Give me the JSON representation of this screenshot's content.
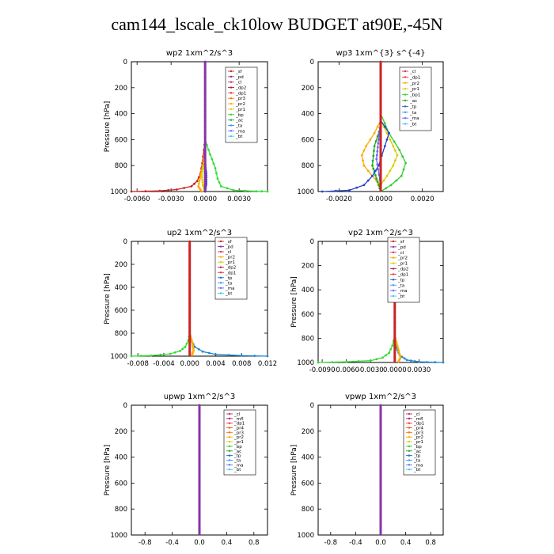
{
  "page": {
    "title": "cam144_lscale_ck10low  BUDGET at90E,-45N"
  },
  "chart_data": [
    {
      "type": "line",
      "title": "wp2   1xm^2/s^3",
      "ylabel": "Pressure [hPa]",
      "xlim": [
        -0.0065,
        0.0055
      ],
      "ylim": [
        1000,
        0
      ],
      "xticks": [
        "-0.0060",
        "-0.0030",
        "0.0000",
        "0.0030"
      ],
      "xtick_values": [
        -0.006,
        -0.003,
        0.0,
        0.003
      ],
      "yticks": [
        0,
        200,
        400,
        600,
        800,
        1000
      ],
      "legend": [
        "_sf",
        "_pd",
        "_cl",
        "_dp2",
        "_dp1",
        "_pr3",
        "_pr2",
        "_pr1",
        "_bp",
        "_ac",
        "_ta",
        "_ma",
        "_bt"
      ],
      "series": [
        {
          "name": "_dp1",
          "color": "#cc2222",
          "points": [
            [
              -0.0065,
              1000
            ],
            [
              -0.004,
              995
            ],
            [
              -0.0025,
              985
            ],
            [
              -0.0012,
              960
            ],
            [
              -0.0007,
              920
            ],
            [
              -0.0004,
              860
            ],
            [
              -0.00025,
              780
            ],
            [
              -0.0001,
              680
            ],
            [
              0.0,
              600
            ]
          ]
        },
        {
          "name": "_pr2",
          "color": "#ffaa00",
          "points": [
            [
              -0.0003,
              1000
            ],
            [
              -0.0006,
              960
            ],
            [
              -0.0004,
              880
            ],
            [
              -0.0002,
              800
            ],
            [
              0.0,
              700
            ]
          ]
        },
        {
          "name": "_pr1",
          "color": "#ddcc00",
          "points": [
            [
              0.0,
              1000
            ],
            [
              -0.0002,
              950
            ],
            [
              -0.0003,
              870
            ],
            [
              -0.0001,
              780
            ],
            [
              0.0,
              700
            ]
          ]
        },
        {
          "name": "_ac",
          "color": "#33dd33",
          "points": [
            [
              0.0055,
              1000
            ],
            [
              0.0045,
              998
            ],
            [
              0.0025,
              990
            ],
            [
              0.0014,
              960
            ],
            [
              0.0011,
              900
            ],
            [
              0.0009,
              820
            ],
            [
              0.0006,
              750
            ],
            [
              0.0003,
              680
            ],
            [
              0.0,
              600
            ]
          ]
        },
        {
          "name": "_pd",
          "color": "#3333cc",
          "points": [
            [
              0.0,
              1000
            ],
            [
              0.0001,
              940
            ],
            [
              0.0001,
              860
            ],
            [
              0.0,
              780
            ]
          ]
        },
        {
          "name": "_bt",
          "color": "#8833aa",
          "points": [
            [
              0.0,
              0
            ],
            [
              0.0,
              1000
            ]
          ]
        }
      ]
    },
    {
      "type": "line",
      "title": "wp3   1xm^{3} s^{-4}",
      "ylabel": "",
      "xlim": [
        -0.003,
        0.003
      ],
      "ylim": [
        1000,
        0
      ],
      "xticks": [
        "-0.0020",
        "0.0000",
        "0.0020"
      ],
      "xtick_values": [
        -0.002,
        0.0,
        0.002
      ],
      "yticks": [
        0,
        200,
        400,
        600,
        800,
        1000
      ],
      "legend": [
        "_cl",
        "_dp1",
        "_pr2",
        "_pr1",
        "_bp1",
        "_ac",
        "_tp",
        "_ta",
        "_ma",
        "_bt"
      ],
      "series": [
        {
          "name": "_pr2",
          "color": "#ffaa00",
          "points": [
            [
              0.0,
              450
            ],
            [
              -0.0003,
              550
            ],
            [
              -0.0007,
              650
            ],
            [
              -0.0009,
              720
            ],
            [
              -0.0008,
              800
            ],
            [
              -0.0004,
              880
            ],
            [
              0.0,
              950
            ]
          ]
        },
        {
          "name": "_pr1",
          "color": "#ddcc00",
          "points": [
            [
              0.0,
              450
            ],
            [
              0.0003,
              550
            ],
            [
              0.0006,
              650
            ],
            [
              0.0008,
              720
            ],
            [
              0.0006,
              800
            ],
            [
              0.0003,
              880
            ],
            [
              0.0,
              950
            ]
          ]
        },
        {
          "name": "_bp1",
          "color": "#33cc33",
          "points": [
            [
              0.0,
              400
            ],
            [
              0.0004,
              550
            ],
            [
              0.0009,
              680
            ],
            [
              0.0012,
              780
            ],
            [
              0.001,
              880
            ],
            [
              0.0005,
              950
            ],
            [
              0.0,
              1000
            ]
          ]
        },
        {
          "name": "_ac",
          "color": "#22aa22",
          "points": [
            [
              0.0,
              500
            ],
            [
              -0.0003,
              650
            ],
            [
              -0.0004,
              800
            ],
            [
              -0.0002,
              900
            ],
            [
              0.0,
              1000
            ]
          ]
        },
        {
          "name": "_tp",
          "color": "#2244cc",
          "points": [
            [
              -0.0028,
              1000
            ],
            [
              -0.0015,
              990
            ],
            [
              -0.0008,
              950
            ],
            [
              -0.0004,
              880
            ],
            [
              -0.0001,
              800
            ],
            [
              0.0002,
              650
            ],
            [
              0.0004,
              550
            ],
            [
              0.0,
              450
            ]
          ]
        },
        {
          "name": "_ta",
          "color": "#6666ff",
          "points": [
            [
              0.0,
              450
            ],
            [
              -0.0001,
              600
            ],
            [
              -0.0002,
              750
            ],
            [
              0.0,
              950
            ]
          ]
        },
        {
          "name": "_dp1",
          "color": "#cc2222",
          "points": [
            [
              0.0,
              0
            ],
            [
              0.0,
              1000
            ]
          ]
        }
      ]
    },
    {
      "type": "line",
      "title": "up2   1xm^2/s^3",
      "ylabel": "Pressure [hPa]",
      "xlim": [
        -0.009,
        0.012
      ],
      "ylim": [
        1000,
        0
      ],
      "xticks": [
        "-0.008",
        "-0.004",
        "0.000",
        "0.004",
        "0.008",
        "0.012"
      ],
      "xtick_values": [
        -0.008,
        -0.004,
        0.0,
        0.004,
        0.008,
        0.012
      ],
      "yticks": [
        0,
        200,
        400,
        600,
        800,
        1000
      ],
      "legend": [
        "_sf",
        "_pd",
        "_cl",
        "_pr2",
        "_pr1",
        "_dp2",
        "_dp1",
        "_tp",
        "_ta",
        "_ma",
        "_bt"
      ],
      "series": [
        {
          "name": "_dp1",
          "color": "#33dd33",
          "points": [
            [
              -0.009,
              1000
            ],
            [
              -0.006,
              995
            ],
            [
              -0.003,
              980
            ],
            [
              -0.0015,
              955
            ],
            [
              -0.0007,
              920
            ],
            [
              -0.0002,
              860
            ],
            [
              0.0,
              800
            ]
          ]
        },
        {
          "name": "_ta",
          "color": "#2288cc",
          "points": [
            [
              0.012,
              1000
            ],
            [
              0.008,
              995
            ],
            [
              0.004,
              985
            ],
            [
              0.002,
              960
            ],
            [
              0.0008,
              920
            ],
            [
              0.0003,
              870
            ],
            [
              0.0,
              820
            ]
          ]
        },
        {
          "name": "_pr2",
          "color": "#ffaa00",
          "points": [
            [
              0.0,
              800
            ],
            [
              0.0004,
              880
            ],
            [
              0.0006,
              950
            ],
            [
              0.0003,
              1000
            ]
          ]
        },
        {
          "name": "_cl",
          "color": "#cc2222",
          "points": [
            [
              0.0,
              0
            ],
            [
              0.0,
              1000
            ]
          ]
        }
      ]
    },
    {
      "type": "line",
      "title": "vp2   1xm^2/s^3",
      "ylabel": "Pressure [hPa]",
      "xlim": [
        -0.0095,
        0.006
      ],
      "ylim": [
        1000,
        0
      ],
      "xticks": [
        "-0.0090",
        "-0.0060",
        "-0.0030",
        "0.0000",
        "0.0030"
      ],
      "xtick_values": [
        -0.009,
        -0.006,
        -0.003,
        0.0,
        0.003
      ],
      "yticks": [
        0,
        200,
        400,
        600,
        800,
        1000
      ],
      "legend": [
        "_sf",
        "_pd",
        "_cl",
        "_pr2",
        "_pr1",
        "_dp2",
        "_dp1",
        "_tp",
        "_ta",
        "_ma",
        "_bt"
      ],
      "series": [
        {
          "name": "_dp1",
          "color": "#33dd33",
          "points": [
            [
              -0.0095,
              1000
            ],
            [
              -0.006,
              995
            ],
            [
              -0.003,
              985
            ],
            [
              -0.0015,
              960
            ],
            [
              -0.0007,
              920
            ],
            [
              -0.0003,
              860
            ],
            [
              0.0,
              780
            ]
          ]
        },
        {
          "name": "_ta",
          "color": "#2288cc",
          "points": [
            [
              0.006,
              1000
            ],
            [
              0.003,
              995
            ],
            [
              0.0015,
              980
            ],
            [
              0.0006,
              940
            ],
            [
              0.0002,
              880
            ],
            [
              0.0,
              820
            ]
          ]
        },
        {
          "name": "_pr2",
          "color": "#ffaa00",
          "points": [
            [
              0.0,
              780
            ],
            [
              0.0004,
              880
            ],
            [
              0.0007,
              960
            ],
            [
              0.0004,
              1000
            ]
          ]
        },
        {
          "name": "_cl",
          "color": "#cc2222",
          "points": [
            [
              0.0,
              0
            ],
            [
              0.0,
              1000
            ]
          ]
        }
      ]
    },
    {
      "type": "line",
      "title": "upwp   1xm^2/s^3",
      "ylabel": "Pressure [hPa]",
      "xlim": [
        -1.0,
        1.0
      ],
      "ylim": [
        1000,
        0
      ],
      "xticks": [
        "-0.8",
        "-0.4",
        "0.0",
        "0.4",
        "0.8"
      ],
      "xtick_values": [
        -0.8,
        -0.4,
        0.0,
        0.4,
        0.8
      ],
      "yticks": [
        0,
        200,
        400,
        600,
        800,
        1000
      ],
      "legend": [
        "_cl",
        "_mfl",
        "_dp1",
        "_pr4",
        "_pr3",
        "_pr2",
        "_pr1",
        "_bp",
        "_ac",
        "_tp",
        "_ta",
        "_ma",
        "_bt"
      ],
      "series": [
        {
          "name": "_cl",
          "color": "#cc2222",
          "points": [
            [
              0.0,
              0
            ],
            [
              0.0,
              1000
            ]
          ]
        },
        {
          "name": "_bt",
          "color": "#8833aa",
          "points": [
            [
              0.0,
              0
            ],
            [
              0.0,
              1000
            ]
          ]
        }
      ]
    },
    {
      "type": "line",
      "title": "vpwp   1xm^2/s^3",
      "ylabel": "Pressure [hPa]",
      "xlim": [
        -1.0,
        1.0
      ],
      "ylim": [
        1000,
        0
      ],
      "xticks": [
        "-0.8",
        "-0.4",
        "0.0",
        "0.4",
        "0.8"
      ],
      "xtick_values": [
        -0.8,
        -0.4,
        0.0,
        0.4,
        0.8
      ],
      "yticks": [
        0,
        200,
        400,
        600,
        800,
        1000
      ],
      "legend": [
        "_cl",
        "_mfl",
        "_dp1",
        "_pr4",
        "_pr3",
        "_pr2",
        "_pr1",
        "_bp",
        "_ac",
        "_tp",
        "_ta",
        "_ma",
        "_bt"
      ],
      "series": [
        {
          "name": "_cl",
          "color": "#cc2222",
          "points": [
            [
              0.0,
              0
            ],
            [
              0.0,
              1000
            ]
          ]
        },
        {
          "name": "_bt",
          "color": "#8833aa",
          "points": [
            [
              0.0,
              0
            ],
            [
              0.0,
              1000
            ]
          ]
        }
      ]
    }
  ],
  "legend_colors": {
    "_sf": "#cc2222",
    "_pd": "#8833aa",
    "_cl": "#cc3366",
    "_dp2": "#aa2244",
    "_dp1": "#ee3333",
    "_pr4": "#ff5500",
    "_pr3": "#ff7700",
    "_pr2": "#ffaa00",
    "_pr1": "#ddcc00",
    "_bp": "#33cc33",
    "_bp1": "#33cc33",
    "_ac": "#22aa22",
    "_tp": "#2266cc",
    "_ta": "#3399ff",
    "_ma": "#6666ff",
    "_bt": "#33ccee",
    "_mfl": "#aa2288"
  }
}
